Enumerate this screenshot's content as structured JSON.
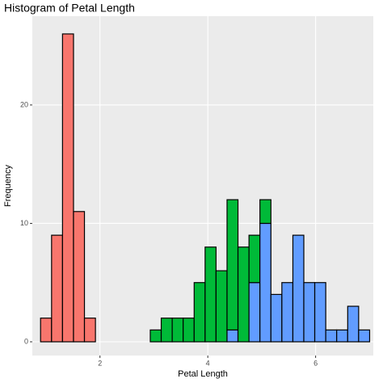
{
  "chart_data": {
    "type": "histogram",
    "title": "Histogram of Petal Length",
    "x_label": "Petal Length",
    "y_label": "Frequency",
    "bins": [
      0.898,
      1.102,
      1.305,
      1.509,
      1.712,
      1.916,
      2.119,
      2.322,
      2.526,
      2.729,
      2.933,
      3.136,
      3.34,
      3.543,
      3.747,
      3.95,
      4.153,
      4.357,
      4.56,
      4.764,
      4.967,
      5.171,
      5.374,
      5.578,
      5.781,
      5.984,
      6.188,
      6.391,
      6.595,
      6.798,
      7.002
    ],
    "series": [
      {
        "color": "#619CFF",
        "values": [
          0,
          0,
          0,
          0,
          0,
          0,
          0,
          0,
          0,
          0,
          0,
          0,
          0,
          0,
          0,
          0,
          0,
          1,
          0,
          5,
          10,
          4,
          5,
          9,
          5,
          5,
          1,
          1,
          3,
          1
        ]
      },
      {
        "color": "#00BA38",
        "values": [
          0,
          0,
          0,
          0,
          0,
          0,
          0,
          0,
          0,
          0,
          1,
          2,
          2,
          2,
          5,
          8,
          6,
          11,
          8,
          4,
          2,
          0,
          0,
          0,
          0,
          0,
          0,
          0,
          0,
          0
        ]
      },
      {
        "color": "#F8766D",
        "values": [
          2,
          9,
          26,
          11,
          2,
          0,
          0,
          0,
          0,
          0,
          0,
          0,
          0,
          0,
          0,
          0,
          0,
          0,
          0,
          0,
          0,
          0,
          0,
          0,
          0,
          0,
          0,
          0,
          0,
          0
        ]
      }
    ],
    "stacked": true,
    "xlim": [
      0.745,
      7.07
    ],
    "ylim": [
      -1.16,
      27.5
    ],
    "xticks": [
      2,
      4,
      6
    ],
    "yticks": [
      0,
      10,
      20
    ],
    "grid": true
  }
}
